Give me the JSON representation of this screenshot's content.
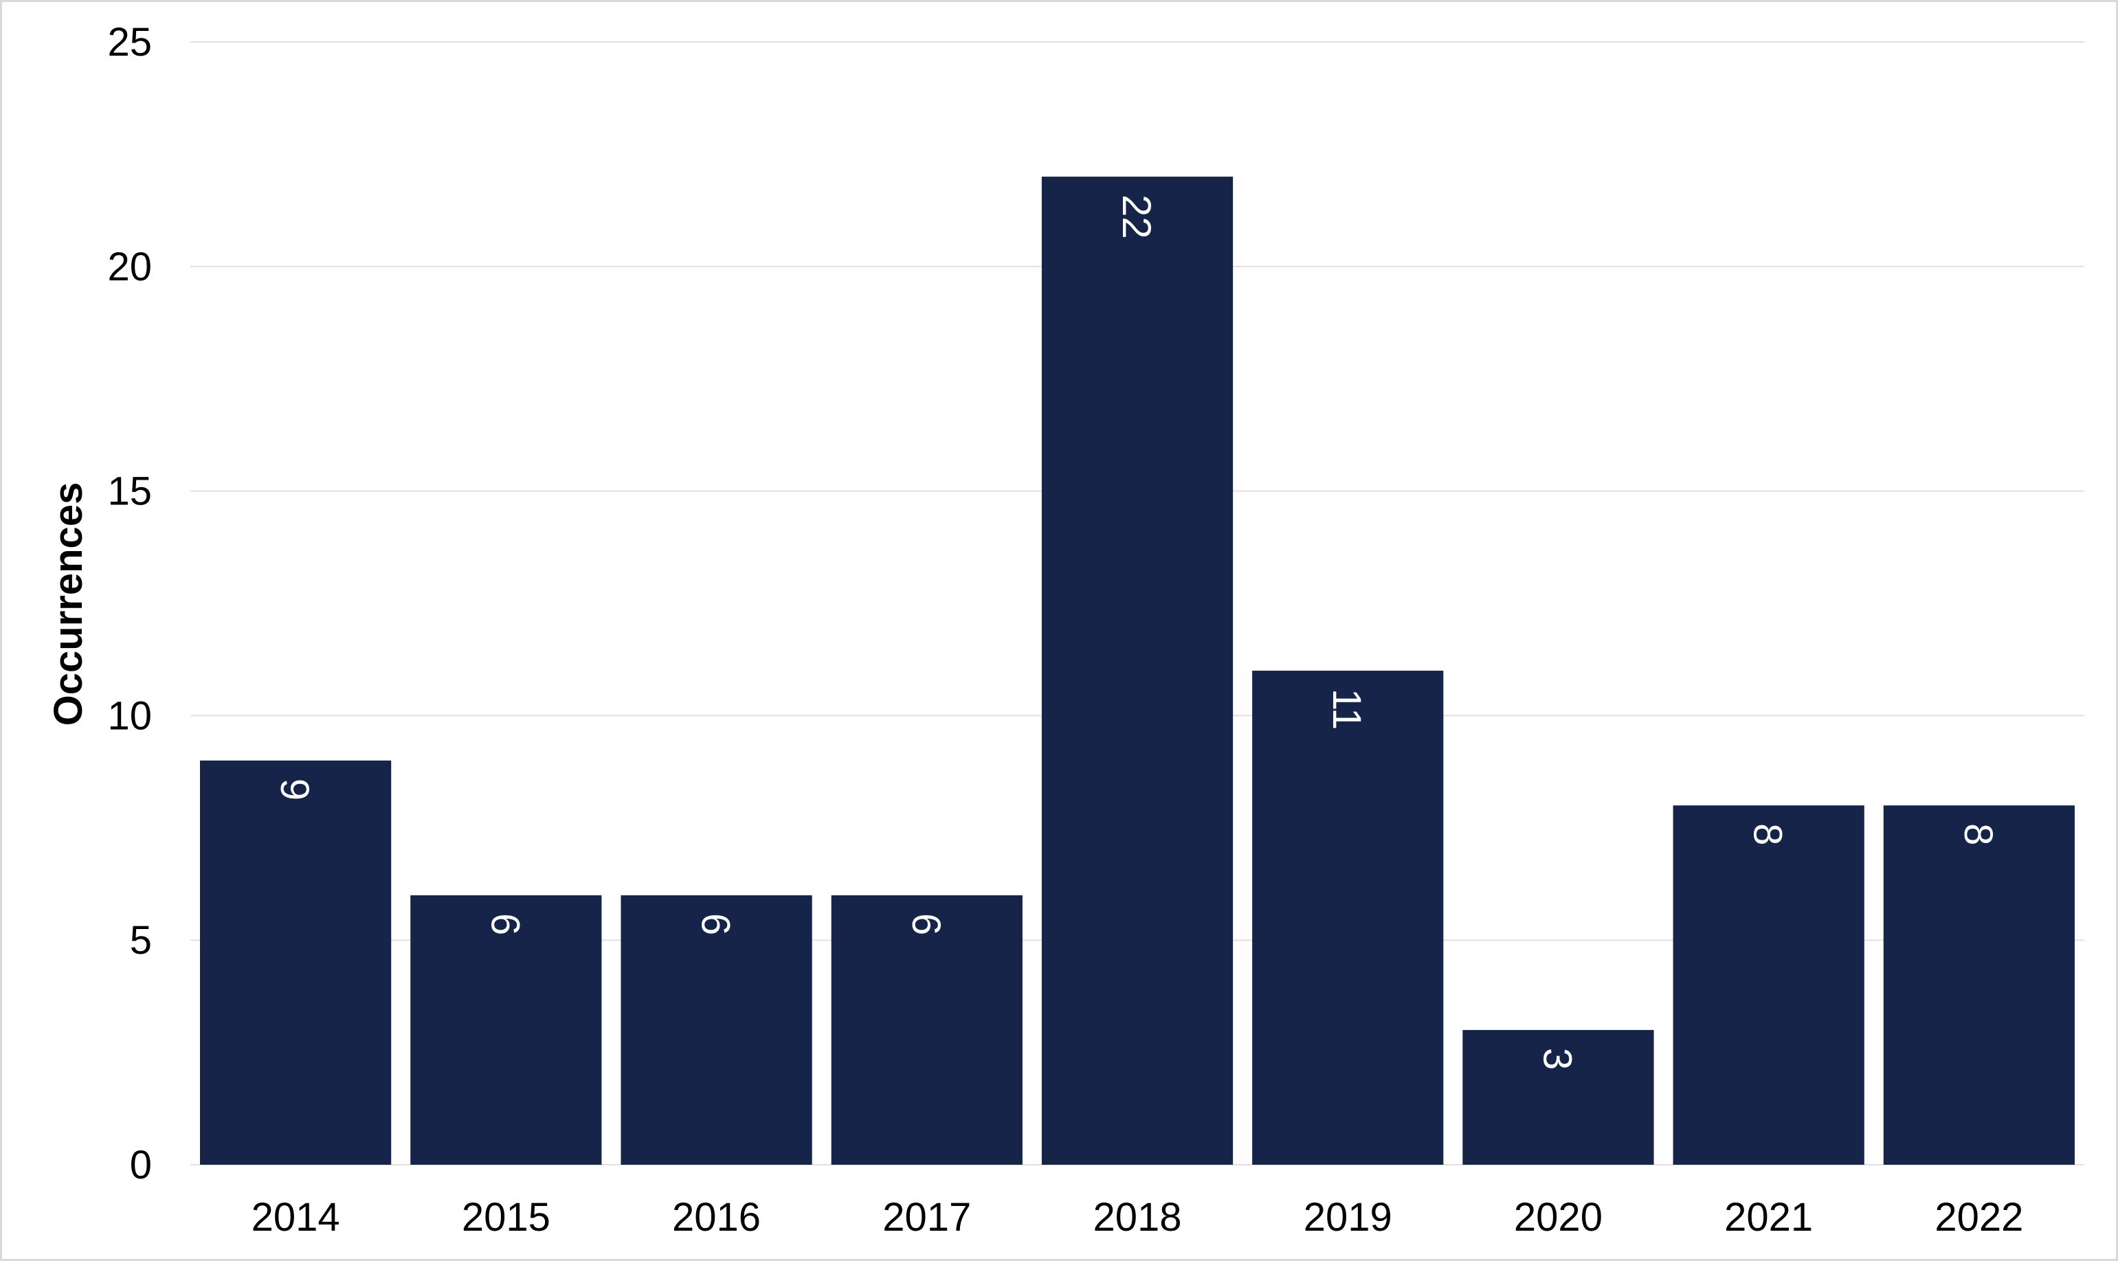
{
  "chart_data": {
    "type": "bar",
    "title": "",
    "xlabel": "",
    "ylabel": "Occurrences",
    "categories": [
      "2014",
      "2015",
      "2016",
      "2017",
      "2018",
      "2019",
      "2020",
      "2021",
      "2022"
    ],
    "values": [
      9,
      6,
      6,
      6,
      22,
      11,
      3,
      8,
      8
    ],
    "data_labels": [
      "9",
      "6",
      "6",
      "6",
      "22",
      "11",
      "3",
      "8",
      "8"
    ],
    "ylim": [
      0,
      25
    ],
    "yticks": [
      0,
      5,
      10,
      15,
      20,
      25
    ],
    "ytick_labels": [
      "0",
      "5",
      "10",
      "15",
      "20",
      "25"
    ],
    "grid": "horizontal",
    "legend": "none",
    "data_label_orientation": "rotated-90-clockwise",
    "colors": {
      "bar": "#16244a",
      "grid": "#e0e0e0",
      "data_label": "#ffffff",
      "text": "#000000",
      "frame": "#d9d9d9"
    }
  }
}
